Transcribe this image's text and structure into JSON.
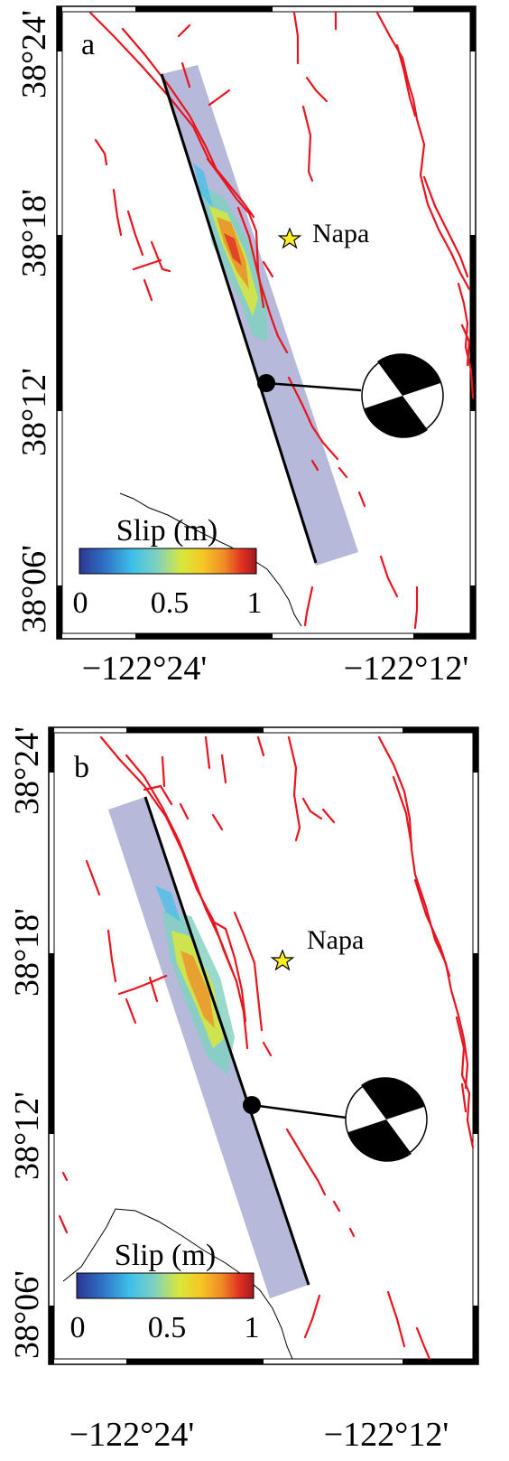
{
  "panels": [
    {
      "label": "a",
      "y_ticks": [
        "38°24'",
        "38°18'",
        "38°12'",
        "38°06'"
      ],
      "x_ticks": [
        "−122°24'",
        "−122°12'"
      ],
      "location": "Napa",
      "colorbar": {
        "title": "Slip (m)",
        "ticks": [
          "0",
          "0.5",
          "1"
        ]
      }
    },
    {
      "label": "b",
      "y_ticks": [
        "38°24'",
        "38°18'",
        "38°12'",
        "38°06'"
      ],
      "x_ticks": [
        "−122°24'",
        "−122°12'"
      ],
      "location": "Napa",
      "colorbar": {
        "title": "Slip (m)",
        "ticks": [
          "0",
          "0.5",
          "1"
        ]
      }
    }
  ],
  "colors": {
    "faults": "#e8141e",
    "fault_trace": "#000000",
    "slip_plane": "#8f93c6",
    "star": "#ffee22",
    "colormap": [
      "#2c3592",
      "#2f6fc4",
      "#3ec0ea",
      "#7fd1c0",
      "#d9e83a",
      "#f7c625",
      "#f08a25",
      "#e03023",
      "#a11a1e"
    ]
  }
}
